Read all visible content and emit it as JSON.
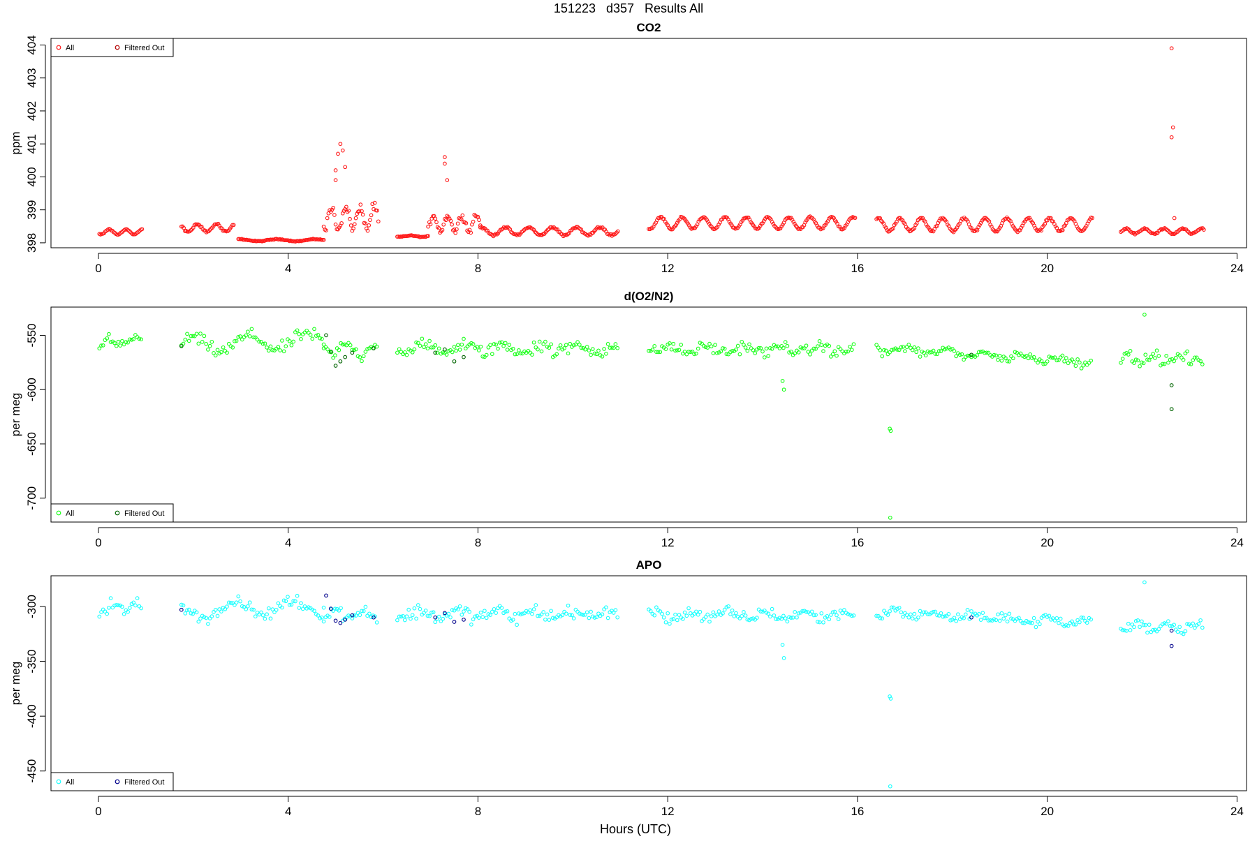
{
  "figure_title": "151223   d357   Results All",
  "chart_data": [
    {
      "type": "scatter",
      "title": "CO2",
      "ylabel": "ppm",
      "xlabel": "",
      "xlim": [
        -1,
        24.2
      ],
      "ylim": [
        397.85,
        404.2
      ],
      "xticks": [
        0,
        4,
        8,
        12,
        16,
        20,
        24
      ],
      "yticks": [
        398,
        399,
        400,
        401,
        402,
        403,
        404
      ],
      "legend": {
        "placement": "top-left",
        "entries": [
          "All",
          "Filtered Out"
        ]
      },
      "colors": {
        "all": "#ff1a1a",
        "filtered": "#b30000"
      },
      "series": [
        {
          "name": "All",
          "segments": [
            {
              "start": 0.02,
              "end": 0.92,
              "step": 0.025,
              "base": 398.33,
              "amp": 0.08,
              "period": 0.35,
              "noise": 0.03
            },
            {
              "start": 1.75,
              "end": 2.85,
              "step": 0.025,
              "base": 398.45,
              "amp": 0.12,
              "period": 0.4,
              "noise": 0.05
            },
            {
              "start": 2.95,
              "end": 4.75,
              "step": 0.025,
              "base": 398.08,
              "amp": 0.03,
              "period": 0.8,
              "noise": 0.02
            },
            {
              "start": 4.75,
              "end": 5.9,
              "step": 0.025,
              "base": 398.75,
              "amp": 0.35,
              "period": 0.3,
              "noise": 0.25
            },
            {
              "start": 6.3,
              "end": 6.95,
              "step": 0.025,
              "base": 398.2,
              "amp": 0.02,
              "period": 0.5,
              "noise": 0.02
            },
            {
              "start": 6.95,
              "end": 8.05,
              "step": 0.025,
              "base": 398.6,
              "amp": 0.25,
              "period": 0.3,
              "noise": 0.18
            },
            {
              "start": 8.05,
              "end": 10.95,
              "step": 0.025,
              "base": 398.35,
              "amp": 0.12,
              "period": 0.5,
              "noise": 0.05
            },
            {
              "start": 11.6,
              "end": 15.95,
              "step": 0.025,
              "base": 398.6,
              "amp": 0.18,
              "period": 0.45,
              "noise": 0.04
            },
            {
              "start": 16.4,
              "end": 20.95,
              "step": 0.025,
              "base": 398.55,
              "amp": 0.2,
              "period": 0.45,
              "noise": 0.05
            },
            {
              "start": 21.55,
              "end": 23.3,
              "step": 0.025,
              "base": 398.35,
              "amp": 0.08,
              "period": 0.4,
              "noise": 0.04
            }
          ],
          "outliers": [
            {
              "x": 5.0,
              "y": 400.2
            },
            {
              "x": 5.05,
              "y": 400.7
            },
            {
              "x": 5.1,
              "y": 401.0
            },
            {
              "x": 5.15,
              "y": 400.8
            },
            {
              "x": 5.2,
              "y": 400.3
            },
            {
              "x": 5.0,
              "y": 399.9
            },
            {
              "x": 7.3,
              "y": 400.6
            },
            {
              "x": 7.3,
              "y": 400.4
            },
            {
              "x": 7.35,
              "y": 399.9
            },
            {
              "x": 22.62,
              "y": 403.9
            },
            {
              "x": 22.65,
              "y": 401.5
            },
            {
              "x": 22.62,
              "y": 401.2
            },
            {
              "x": 22.68,
              "y": 398.75
            }
          ]
        },
        {
          "name": "Filtered Out",
          "points": []
        }
      ]
    },
    {
      "type": "scatter",
      "title": "d(O2/N2)",
      "ylabel": "per meg",
      "xlabel": "",
      "xlim": [
        -1,
        24.2
      ],
      "ylim": [
        -722,
        -524
      ],
      "xticks": [
        0,
        4,
        8,
        12,
        16,
        20,
        24
      ],
      "yticks": [
        -550,
        -600,
        -650,
        -700
      ],
      "legend": {
        "placement": "bottom-left",
        "entries": [
          "All",
          "Filtered Out"
        ]
      },
      "colors": {
        "all": "#1aff1a",
        "filtered": "#006400"
      },
      "series": [
        {
          "name": "All",
          "segments": [
            {
              "start": 0.02,
              "end": 0.92,
              "step": 0.04,
              "base": -556,
              "amp": 4,
              "period": 0.5,
              "noise": 9
            },
            {
              "start": 1.75,
              "end": 4.75,
              "step": 0.04,
              "base": -557,
              "amp": 7,
              "period": 1.2,
              "noise": 10,
              "trend": 5
            },
            {
              "start": 4.75,
              "end": 5.9,
              "step": 0.04,
              "base": -563,
              "amp": 5,
              "period": 0.6,
              "noise": 9
            },
            {
              "start": 6.3,
              "end": 10.95,
              "step": 0.04,
              "base": -562,
              "amp": 3,
              "period": 0.8,
              "noise": 11
            },
            {
              "start": 11.6,
              "end": 15.95,
              "step": 0.04,
              "base": -563,
              "amp": 3,
              "period": 0.8,
              "noise": 9
            },
            {
              "start": 16.4,
              "end": 20.95,
              "step": 0.04,
              "base": -568,
              "amp": 3,
              "period": 0.8,
              "noise": 7,
              "trend": -12
            },
            {
              "start": 21.55,
              "end": 23.3,
              "step": 0.04,
              "base": -572,
              "amp": 3,
              "period": 0.6,
              "noise": 9
            }
          ],
          "outliers": [
            {
              "x": 14.42,
              "y": -592
            },
            {
              "x": 14.45,
              "y": -600
            },
            {
              "x": 16.68,
              "y": -636
            },
            {
              "x": 16.7,
              "y": -638
            },
            {
              "x": 16.69,
              "y": -718
            },
            {
              "x": 22.05,
              "y": -531
            }
          ]
        },
        {
          "name": "Filtered Out",
          "points": [
            {
              "x": 1.75,
              "y": -560
            },
            {
              "x": 4.8,
              "y": -550
            },
            {
              "x": 4.9,
              "y": -565
            },
            {
              "x": 5.0,
              "y": -578
            },
            {
              "x": 5.1,
              "y": -574
            },
            {
              "x": 5.2,
              "y": -570
            },
            {
              "x": 5.35,
              "y": -566
            },
            {
              "x": 5.8,
              "y": -562
            },
            {
              "x": 7.1,
              "y": -566
            },
            {
              "x": 7.3,
              "y": -563
            },
            {
              "x": 7.5,
              "y": -574
            },
            {
              "x": 7.7,
              "y": -570
            },
            {
              "x": 18.4,
              "y": -568
            },
            {
              "x": 22.62,
              "y": -596
            },
            {
              "x": 22.62,
              "y": -618
            }
          ]
        }
      ]
    },
    {
      "type": "scatter",
      "title": "APO",
      "ylabel": "per meg",
      "xlabel": "Hours (UTC)",
      "xlim": [
        -1,
        24.2
      ],
      "ylim": [
        -468,
        -272
      ],
      "xticks": [
        0,
        4,
        8,
        12,
        16,
        20,
        24
      ],
      "yticks": [
        -300,
        -350,
        -400,
        -450
      ],
      "legend": {
        "placement": "bottom-left",
        "entries": [
          "All",
          "Filtered Out"
        ]
      },
      "colors": {
        "all": "#1affff",
        "filtered": "#00008b"
      },
      "series": [
        {
          "name": "All",
          "segments": [
            {
              "start": 0.02,
              "end": 0.92,
              "step": 0.04,
              "base": -301,
              "amp": 4,
              "period": 0.5,
              "noise": 9
            },
            {
              "start": 1.75,
              "end": 4.75,
              "step": 0.04,
              "base": -302,
              "amp": 6,
              "period": 1.2,
              "noise": 10,
              "trend": 6
            },
            {
              "start": 4.75,
              "end": 5.9,
              "step": 0.04,
              "base": -307,
              "amp": 4,
              "period": 0.6,
              "noise": 8
            },
            {
              "start": 6.3,
              "end": 10.95,
              "step": 0.04,
              "base": -307,
              "amp": 3,
              "period": 0.8,
              "noise": 11
            },
            {
              "start": 11.6,
              "end": 15.95,
              "step": 0.04,
              "base": -308,
              "amp": 3,
              "period": 0.8,
              "noise": 9
            },
            {
              "start": 16.4,
              "end": 20.95,
              "step": 0.04,
              "base": -310,
              "amp": 3,
              "period": 0.8,
              "noise": 7,
              "trend": -10
            },
            {
              "start": 21.55,
              "end": 23.3,
              "step": 0.04,
              "base": -318,
              "amp": 3,
              "period": 0.6,
              "noise": 8
            }
          ],
          "outliers": [
            {
              "x": 14.42,
              "y": -335
            },
            {
              "x": 14.45,
              "y": -347
            },
            {
              "x": 16.68,
              "y": -382
            },
            {
              "x": 16.7,
              "y": -384
            },
            {
              "x": 16.69,
              "y": -464
            },
            {
              "x": 22.05,
              "y": -278
            }
          ]
        },
        {
          "name": "Filtered Out",
          "points": [
            {
              "x": 1.75,
              "y": -303
            },
            {
              "x": 4.8,
              "y": -290
            },
            {
              "x": 4.9,
              "y": -302
            },
            {
              "x": 5.0,
              "y": -313
            },
            {
              "x": 5.1,
              "y": -315
            },
            {
              "x": 5.2,
              "y": -312
            },
            {
              "x": 5.35,
              "y": -308
            },
            {
              "x": 5.8,
              "y": -310
            },
            {
              "x": 7.1,
              "y": -310
            },
            {
              "x": 7.3,
              "y": -306
            },
            {
              "x": 7.5,
              "y": -314
            },
            {
              "x": 7.7,
              "y": -312
            },
            {
              "x": 18.4,
              "y": -310
            },
            {
              "x": 22.62,
              "y": -322
            },
            {
              "x": 22.62,
              "y": -336
            }
          ]
        }
      ]
    }
  ]
}
